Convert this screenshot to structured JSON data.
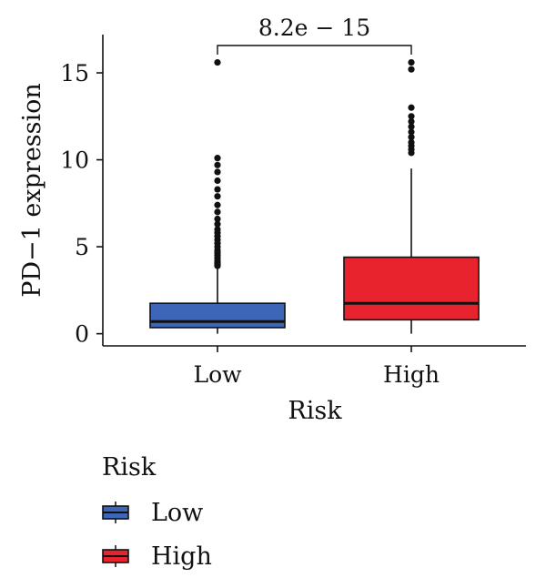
{
  "chart_data": {
    "type": "box",
    "xlabel": "Risk",
    "ylabel": "PD−1 expression",
    "ylim": [
      -0.7,
      17.2
    ],
    "yticks": [
      0,
      5,
      10,
      15
    ],
    "categories": [
      "Low",
      "High"
    ],
    "series": [
      {
        "name": "Low",
        "color": "#3e66b8",
        "min": 0.0,
        "q1": 0.35,
        "median": 0.7,
        "q3": 1.75,
        "max": 3.75,
        "outliers": [
          3.9,
          4.0,
          4.1,
          4.2,
          4.35,
          4.5,
          4.65,
          4.8,
          5.0,
          5.2,
          5.4,
          5.6,
          5.8,
          6.0,
          6.3,
          6.6,
          7.0,
          7.4,
          7.9,
          8.3,
          8.8,
          9.3,
          9.7,
          10.1,
          15.6
        ]
      },
      {
        "name": "High",
        "color": "#e8232e",
        "min": 0.0,
        "q1": 0.8,
        "median": 1.75,
        "q3": 4.4,
        "max": 9.5,
        "outliers": [
          10.4,
          10.6,
          10.8,
          11.0,
          11.3,
          11.6,
          11.9,
          12.2,
          12.5,
          13.0,
          15.2,
          15.6
        ]
      }
    ],
    "annotation": {
      "text": "8.2e − 15",
      "between": [
        "Low",
        "High"
      ]
    },
    "legend": {
      "title": "Risk",
      "position": "bottom-left",
      "items": [
        {
          "label": "Low",
          "color": "#3e66b8"
        },
        {
          "label": "High",
          "color": "#e8232e"
        }
      ]
    }
  }
}
